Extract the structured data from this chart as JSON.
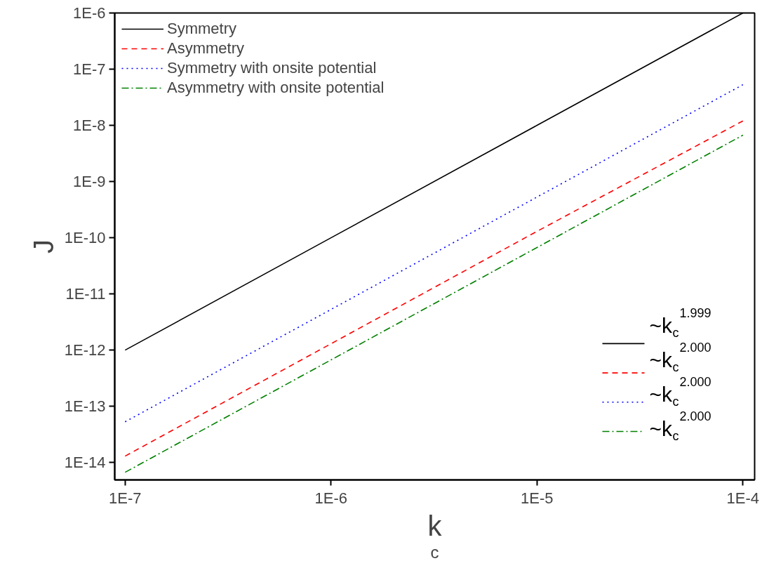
{
  "chart_data": {
    "type": "line",
    "xlabel": "k$_{c}$",
    "ylabel": "J",
    "log": "xy",
    "x": [
      1e-07,
      1e-06,
      1e-05,
      0.0001
    ],
    "series": [
      {
        "name": "Symmetry",
        "color": "#000000",
        "line_style": "solid",
        "values": [
          1e-12,
          1e-10,
          1e-08,
          1e-06
        ]
      },
      {
        "name": "Asymmetry",
        "color": "#ff0000",
        "line_style": "dashed",
        "values": [
          1.3e-14,
          1.3e-12,
          1.3e-10,
          1.2e-08
        ]
      },
      {
        "name": "Symmetry with onsite potential",
        "color": "#0000ff",
        "line_style": "dotted",
        "values": [
          5.3e-14,
          5.3e-12,
          5.3e-10,
          5.3e-08
        ]
      },
      {
        "name": "Asymmetry with onsite potential",
        "color": "#008000",
        "line_style": "dashdot",
        "values": [
          6.7e-15,
          6.7e-13,
          6.7e-11,
          6.7e-09
        ]
      }
    ],
    "annotations": [
      "~k$_{c}$$^{1.999}$",
      "~k$_{c}$$^{2.000}$",
      "~k$_{c}$$^{2.000}$",
      "~k$_{c}$$^{2.000}$"
    ],
    "xlim": [
      8.9e-08,
      0.000114
    ],
    "ylim": [
      4.9e-15,
      1e-06
    ],
    "xticks": [
      {
        "value": 1e-07,
        "label": "1E-7"
      },
      {
        "value": 1e-06,
        "label": "1E-6"
      },
      {
        "value": 1e-05,
        "label": "1E-5"
      },
      {
        "value": 0.0001,
        "label": "1E-4"
      }
    ],
    "yticks": [
      {
        "value": 1e-14,
        "label": "1E-14"
      },
      {
        "value": 1e-13,
        "label": "1E-13"
      },
      {
        "value": 1e-12,
        "label": "1E-12"
      },
      {
        "value": 1e-11,
        "label": "1E-11"
      },
      {
        "value": 1e-10,
        "label": "1E-10"
      },
      {
        "value": 1e-09,
        "label": "1E-9"
      },
      {
        "value": 1e-08,
        "label": "1E-8"
      },
      {
        "value": 1e-07,
        "label": "1E-7"
      },
      {
        "value": 1e-06,
        "label": "1E-6"
      }
    ],
    "grid": false,
    "legend": "top left"
  }
}
